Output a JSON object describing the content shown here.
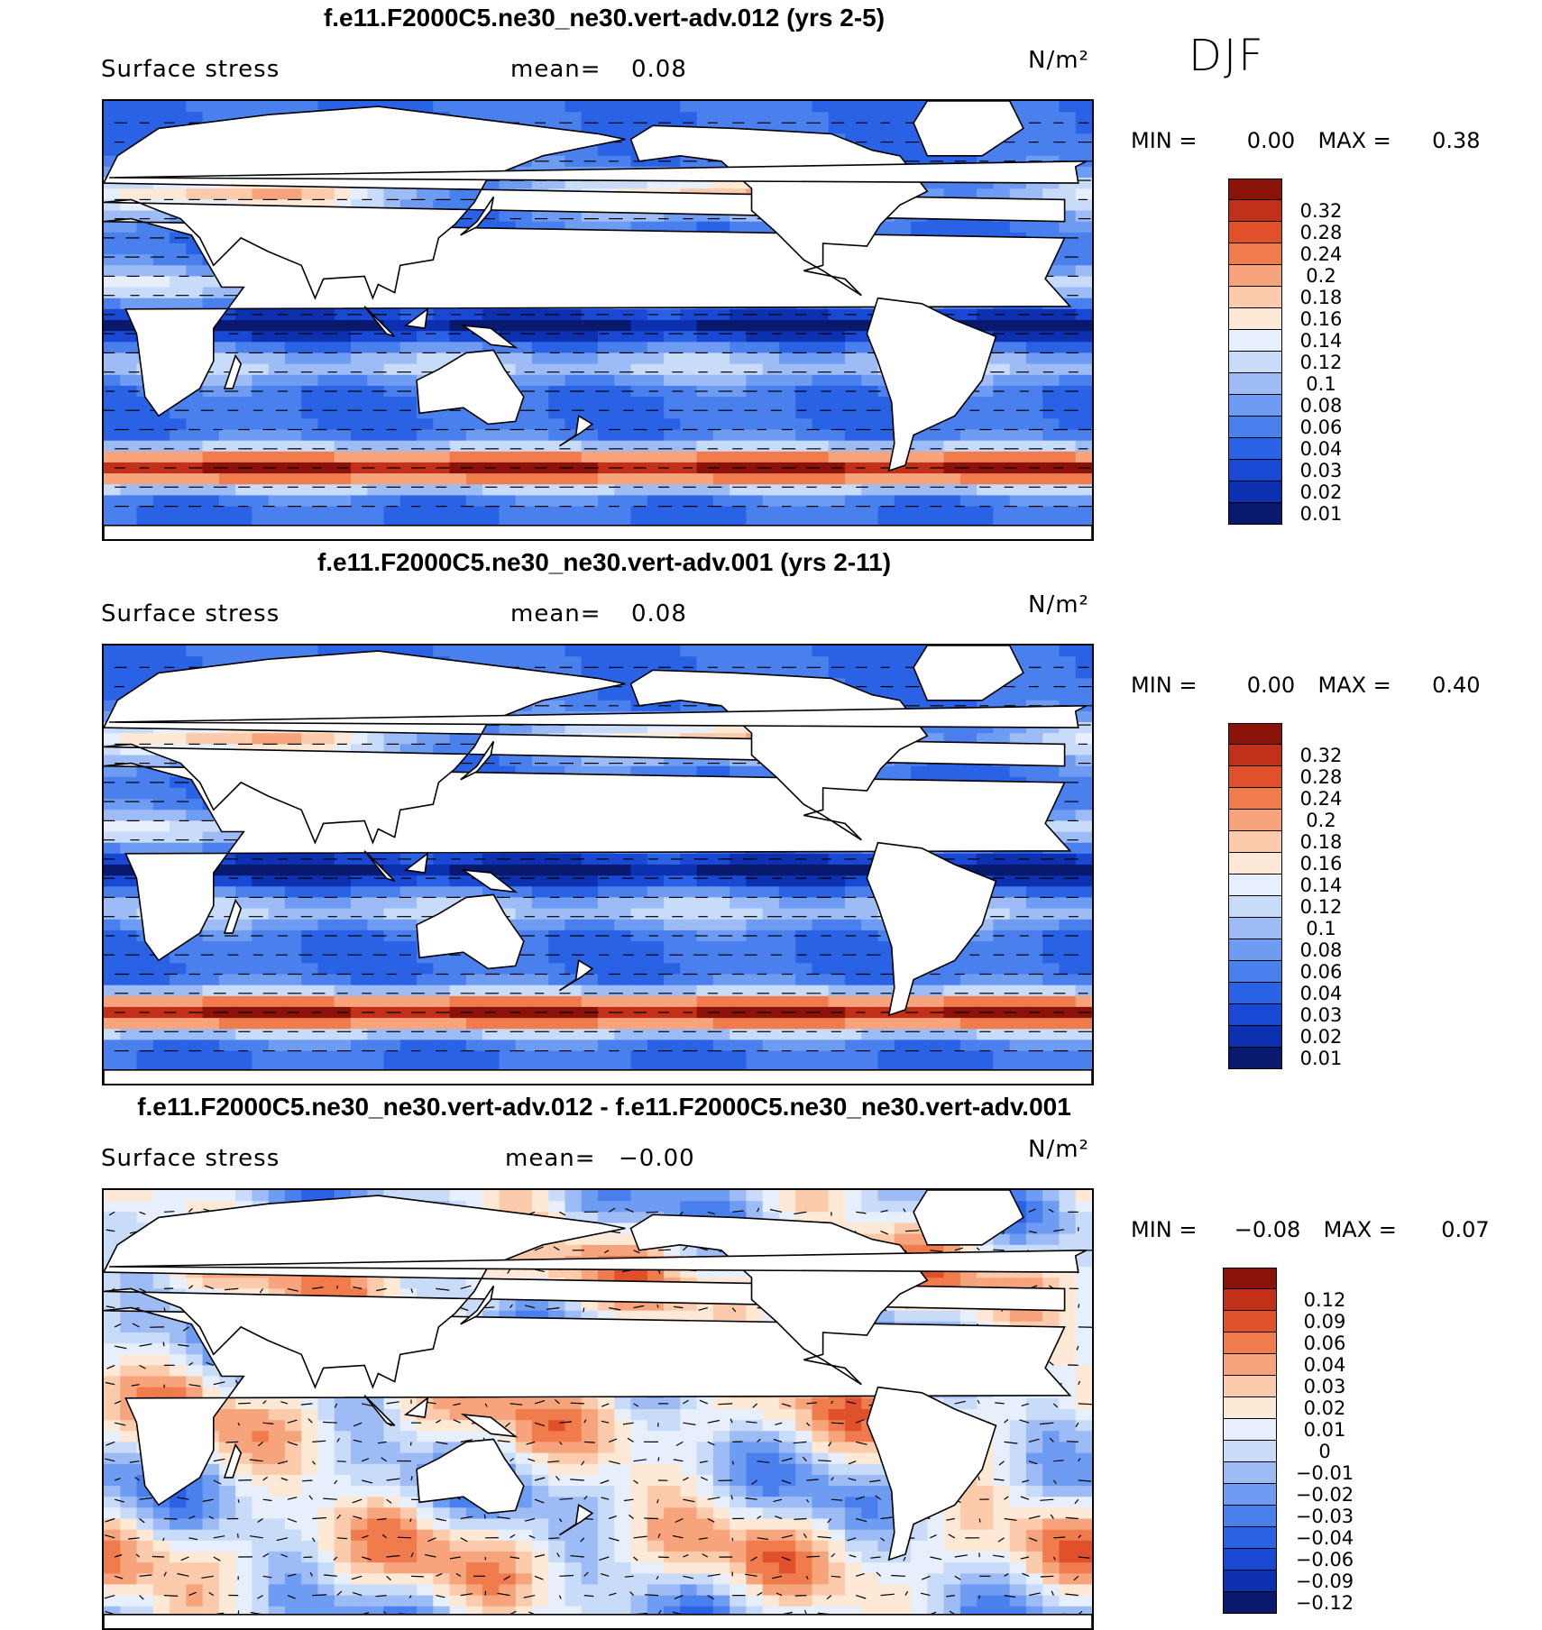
{
  "season": "DJF",
  "colors": {
    "land": "#ffffff",
    "coast": "#000000",
    "abs_levels": [
      "#08196e",
      "#0c30b0",
      "#1848d4",
      "#2a62e6",
      "#4a80ee",
      "#6e9cf2",
      "#9dbcf6",
      "#c8dbf8",
      "#e6effb",
      "#fde9d6",
      "#fbcbac",
      "#f7a47c",
      "#f07b4c",
      "#e0502a",
      "#c2301a",
      "#8a1208"
    ],
    "diff_levels": [
      "#08196e",
      "#0c30b0",
      "#1848d4",
      "#2a62e6",
      "#4a80ee",
      "#6e9cf2",
      "#9dbcf6",
      "#c8dbf8",
      "#e6effb",
      "#fde9d6",
      "#fbcbac",
      "#f7a47c",
      "#f07b4c",
      "#e0502a",
      "#c2301a",
      "#8a1208"
    ]
  },
  "panels": [
    {
      "title": "f.e11.F2000C5.ne30_ne30.vert-adv.012 (yrs 2-5)",
      "field": "Surface stress",
      "mean_label": "mean=",
      "mean_value": "0.08",
      "units": "N/m²",
      "min_label": "MIN =",
      "min_value": "0.00",
      "max_label": "MAX =",
      "max_value": "0.38",
      "colorbar": [
        "0.32",
        "0.28",
        "0.24",
        "0.2",
        "0.18",
        "0.16",
        "0.14",
        "0.12",
        "0.1",
        "0.08",
        "0.06",
        "0.04",
        "0.03",
        "0.02",
        "0.01"
      ],
      "kind": "abs"
    },
    {
      "title": "f.e11.F2000C5.ne30_ne30.vert-adv.001 (yrs 2-11)",
      "field": "Surface stress",
      "mean_label": "mean=",
      "mean_value": "0.08",
      "units": "N/m²",
      "min_label": "MIN =",
      "min_value": "0.00",
      "max_label": "MAX =",
      "max_value": "0.40",
      "colorbar": [
        "0.32",
        "0.28",
        "0.24",
        "0.2",
        "0.18",
        "0.16",
        "0.14",
        "0.12",
        "0.1",
        "0.08",
        "0.06",
        "0.04",
        "0.03",
        "0.02",
        "0.01"
      ],
      "kind": "abs"
    },
    {
      "title": "f.e11.F2000C5.ne30_ne30.vert-adv.012 - f.e11.F2000C5.ne30_ne30.vert-adv.001",
      "field": "Surface stress",
      "mean_label": "mean=",
      "mean_value": "−0.00",
      "units": "N/m²",
      "min_label": "MIN =",
      "min_value": "−0.08",
      "max_label": "MAX =",
      "max_value": "0.07",
      "colorbar": [
        "0.12",
        "0.09",
        "0.06",
        "0.04",
        "0.03",
        "0.02",
        "0.01",
        "0",
        "−0.01",
        "−0.02",
        "−0.03",
        "−0.04",
        "−0.06",
        "−0.09",
        "−0.12"
      ],
      "kind": "diff"
    }
  ]
}
